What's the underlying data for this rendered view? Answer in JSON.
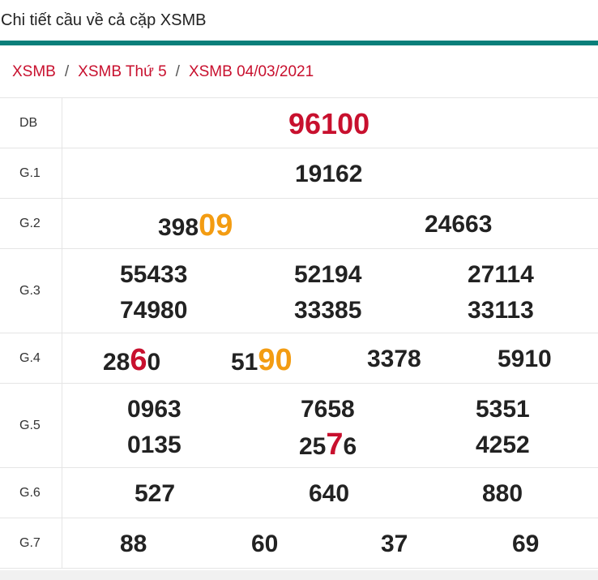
{
  "header": {
    "title": "Chi tiết cầu về cả cặp XSMB"
  },
  "breadcrumb": [
    "XSMB",
    "XSMB Thứ 5",
    "XSMB 04/03/2021"
  ],
  "colors": {
    "accent_bar": "#0a7f7a",
    "link": "#c8102e",
    "highlight_red": "#c8102e",
    "highlight_orange": "#f39c12"
  },
  "results": {
    "db": {
      "label": "DB",
      "value": "96100"
    },
    "g1": {
      "label": "G.1",
      "value": "19162"
    },
    "g2": {
      "label": "G.2",
      "values": [
        {
          "pre": "398",
          "hl": "09",
          "post": ""
        },
        {
          "value": "24663"
        }
      ]
    },
    "g3": {
      "label": "G.3",
      "values": [
        "55433",
        "52194",
        "27114",
        "74980",
        "33385",
        "33113"
      ]
    },
    "g4": {
      "label": "G.4",
      "values": [
        {
          "pre": "28",
          "hl": "6",
          "post": "0"
        },
        {
          "pre": "51",
          "hl": "90",
          "post": ""
        },
        {
          "value": "3378"
        },
        {
          "value": "5910"
        }
      ]
    },
    "g5": {
      "label": "G.5",
      "values": [
        {
          "value": "0963"
        },
        {
          "value": "7658"
        },
        {
          "value": "5351"
        },
        {
          "value": "0135"
        },
        {
          "pre": "25",
          "hl": "7",
          "post": "6"
        },
        {
          "value": "4252"
        }
      ]
    },
    "g6": {
      "label": "G.6",
      "values": [
        "527",
        "640",
        "880"
      ]
    },
    "g7": {
      "label": "G.7",
      "values": [
        "88",
        "60",
        "37",
        "69"
      ]
    }
  }
}
